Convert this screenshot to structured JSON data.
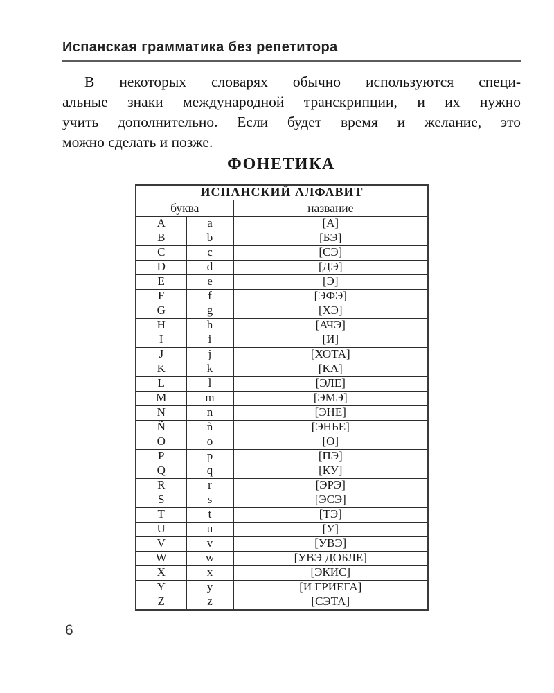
{
  "running_head": {
    "title": "Испанская грамматика без репетитора"
  },
  "intro": {
    "lines": [
      "В некоторых словарях обычно используются специ-",
      "альные знаки международной транскрипции, и их нужно",
      "учить дополнительно. Если будет время и желание, это",
      "можно сделать и позже."
    ]
  },
  "section": {
    "heading": "ФОНЕТИКА"
  },
  "table": {
    "title": "ИСПАНСКИЙ АЛФАВИТ",
    "col_headers": {
      "letter": "буква",
      "name": "название"
    },
    "rows": [
      {
        "upper": "A",
        "lower": "a",
        "name": "[А]"
      },
      {
        "upper": "B",
        "lower": "b",
        "name": "[БЭ]"
      },
      {
        "upper": "C",
        "lower": "c",
        "name": "[СЭ]"
      },
      {
        "upper": "D",
        "lower": "d",
        "name": "[ДЭ]"
      },
      {
        "upper": "E",
        "lower": "e",
        "name": "[Э]"
      },
      {
        "upper": "F",
        "lower": "f",
        "name": "[ЭФЭ]"
      },
      {
        "upper": "G",
        "lower": "g",
        "name": "[ХЭ]"
      },
      {
        "upper": "H",
        "lower": "h",
        "name": "[АЧЭ]"
      },
      {
        "upper": "I",
        "lower": "i",
        "name": "[И]"
      },
      {
        "upper": "J",
        "lower": "j",
        "name": "[ХОТА]"
      },
      {
        "upper": "K",
        "lower": "k",
        "name": "[КА]"
      },
      {
        "upper": "L",
        "lower": "l",
        "name": "[ЭЛЕ]"
      },
      {
        "upper": "M",
        "lower": "m",
        "name": "[ЭМЭ]"
      },
      {
        "upper": "N",
        "lower": "n",
        "name": "[ЭНЕ]"
      },
      {
        "upper": "Ñ",
        "lower": "ñ",
        "name": "[ЭНЬЕ]"
      },
      {
        "upper": "O",
        "lower": "o",
        "name": "[О]"
      },
      {
        "upper": "P",
        "lower": "p",
        "name": "[ПЭ]"
      },
      {
        "upper": "Q",
        "lower": "q",
        "name": "[КУ]"
      },
      {
        "upper": "R",
        "lower": "r",
        "name": "[ЭРЭ]"
      },
      {
        "upper": "S",
        "lower": "s",
        "name": "[ЭСЭ]"
      },
      {
        "upper": "T",
        "lower": "t",
        "name": "[ТЭ]"
      },
      {
        "upper": "U",
        "lower": "u",
        "name": "[У]"
      },
      {
        "upper": "V",
        "lower": "v",
        "name": "[УВЭ]"
      },
      {
        "upper": "W",
        "lower": "w",
        "name": "[УВЭ ДОБЛЕ]"
      },
      {
        "upper": "X",
        "lower": "x",
        "name": "[ЭКИС]"
      },
      {
        "upper": "Y",
        "lower": "y",
        "name": "[И ГРИЕГА]"
      },
      {
        "upper": "Z",
        "lower": "z",
        "name": "[СЭТА]"
      }
    ]
  },
  "footer": {
    "page_number": "6"
  },
  "colors": {
    "text": "#1a1a1a",
    "rule": "#5c5c5e",
    "table_border": "#2d2d2d"
  }
}
